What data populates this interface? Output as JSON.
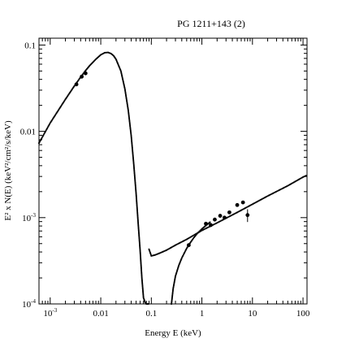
{
  "chart_data": {
    "type": "scatter",
    "title": "PG 1211+143 (2)",
    "xlabel": "Energy E (keV)",
    "ylabel": "E² x N(E) (keV²/cm²/s/keV)",
    "x_scale": "log",
    "y_scale": "log",
    "xlim": [
      0.0006,
      120
    ],
    "ylim": [
      0.0001,
      0.12
    ],
    "grid": false,
    "x_ticks": [
      {
        "value": 0.001,
        "label": "10",
        "sup": "-3"
      },
      {
        "value": 0.01,
        "label": "0.01",
        "sup": ""
      },
      {
        "value": 0.1,
        "label": "0.1",
        "sup": ""
      },
      {
        "value": 1,
        "label": "1",
        "sup": ""
      },
      {
        "value": 10,
        "label": "10",
        "sup": ""
      },
      {
        "value": 100,
        "label": "100",
        "sup": ""
      }
    ],
    "y_ticks": [
      {
        "value": 0.1,
        "label": "0.1",
        "sup": ""
      },
      {
        "value": 0.01,
        "label": "0.01",
        "sup": ""
      },
      {
        "value": 0.001,
        "label": "10",
        "sup": "-3"
      },
      {
        "value": 0.0001,
        "label": "10",
        "sup": "-4"
      }
    ],
    "series": [
      {
        "kind": "model-dotted",
        "x": [
          0.0006,
          0.001,
          0.002,
          0.003,
          0.004,
          0.005,
          0.006,
          0.008,
          0.01,
          0.012,
          0.014,
          0.016,
          0.018,
          0.02,
          0.025,
          0.03,
          0.035,
          0.04,
          0.045,
          0.05,
          0.055,
          0.06,
          0.065,
          0.07,
          0.075,
          0.08,
          0.085,
          0.09
        ],
        "y": [
          0.0073,
          0.0125,
          0.0235,
          0.0335,
          0.0425,
          0.0505,
          0.0575,
          0.0685,
          0.077,
          0.0815,
          0.082,
          0.0795,
          0.075,
          0.0685,
          0.05,
          0.031,
          0.0175,
          0.0089,
          0.0041,
          0.0019,
          0.00085,
          0.00042,
          0.0002,
          0.000118,
          0.000105,
          0.0001,
          0.0001,
          0.0001
        ]
      },
      {
        "kind": "model-dotted",
        "x": [
          0.09,
          0.1,
          0.12,
          0.15,
          0.2,
          0.3,
          0.5,
          1,
          2,
          5,
          10,
          20,
          50,
          100,
          120
        ],
        "y": [
          0.00043,
          0.00036,
          0.00037,
          0.00039,
          0.00042,
          0.00048,
          0.00056,
          0.00071,
          0.00087,
          0.00115,
          0.00143,
          0.00178,
          0.00234,
          0.00295,
          0.0031
        ]
      },
      {
        "kind": "model-dotted",
        "x": [
          0.25,
          0.27,
          0.3,
          0.35,
          0.4,
          0.5,
          0.6,
          0.7,
          0.8,
          1.0,
          1.2,
          1.5
        ],
        "y": [
          0.0001,
          0.00015,
          0.00021,
          0.00028,
          0.00034,
          0.00044,
          0.00052,
          0.00059,
          0.00065,
          0.00074,
          0.00081,
          0.0009
        ]
      },
      {
        "kind": "data",
        "x": [
          0.0033,
          0.0042,
          0.005,
          0.55,
          1.2,
          1.5,
          1.8,
          2.3,
          2.8,
          3.5,
          5,
          6.5,
          8
        ],
        "y": [
          0.035,
          0.043,
          0.047,
          0.00048,
          0.00085,
          0.00082,
          0.00095,
          0.00105,
          0.001,
          0.00115,
          0.0014,
          0.0015,
          0.00107
        ],
        "yerr": [
          0,
          0,
          0,
          0,
          0,
          0,
          0,
          0,
          0,
          0,
          0,
          0,
          0.00018
        ]
      }
    ]
  }
}
